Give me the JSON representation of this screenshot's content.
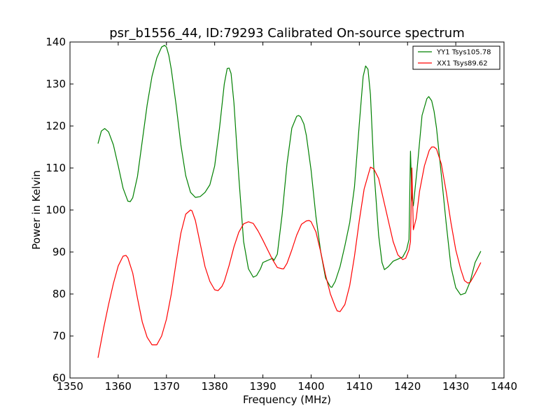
{
  "chart_data": {
    "type": "line",
    "title": "psr_b1556_44, ID:79293 Calibrated On-source spectrum",
    "xlabel": "Frequency (MHz)",
    "ylabel": "Power in Kelvin",
    "xlim": [
      1350,
      1440
    ],
    "ylim": [
      60,
      140
    ],
    "xticks": [
      "1350",
      "1360",
      "1370",
      "1380",
      "1390",
      "1400",
      "1410",
      "1420",
      "1430",
      "1440"
    ],
    "yticks": [
      "60",
      "70",
      "80",
      "90",
      "100",
      "110",
      "120",
      "130",
      "140"
    ],
    "grid": false,
    "legend_position": "top-right",
    "series": [
      {
        "name": "YY1 Tsys105.78",
        "color": "#008000",
        "x": [
          1355.8,
          1356.5,
          1357.2,
          1358,
          1359,
          1360,
          1361,
          1362,
          1362.5,
          1363,
          1364,
          1365,
          1366,
          1367,
          1368,
          1369,
          1369.6,
          1370,
          1370.5,
          1371,
          1372,
          1373,
          1374,
          1375,
          1376,
          1377,
          1378,
          1379,
          1380,
          1381,
          1382,
          1382.6,
          1383,
          1383.4,
          1384,
          1385,
          1386,
          1387,
          1388,
          1388.7,
          1389.5,
          1390,
          1391,
          1392,
          1392.3,
          1393,
          1394,
          1395,
          1396,
          1397,
          1397.4,
          1397.8,
          1398.5,
          1399,
          1400,
          1401,
          1402,
          1403,
          1404,
          1404.3,
          1405,
          1406,
          1407,
          1408,
          1409,
          1410,
          1410.8,
          1411.3,
          1411.8,
          1412.3,
          1413,
          1414,
          1414.7,
          1415.2,
          1416,
          1417,
          1418,
          1419,
          1419.8,
          1420.3,
          1420.6,
          1420.9,
          1421.2,
          1422,
          1423,
          1424,
          1424.4,
          1425,
          1425.5,
          1426,
          1427,
          1428,
          1429,
          1430,
          1431,
          1432,
          1433,
          1434,
          1435.2
        ],
        "y": [
          115.8,
          118.8,
          119.4,
          118.6,
          115.5,
          110.5,
          105.2,
          102.1,
          102,
          102.9,
          108,
          116.5,
          125,
          131.8,
          136.2,
          138.8,
          139.2,
          138.8,
          136.8,
          133.5,
          125,
          115.5,
          108.2,
          104.2,
          103,
          103.2,
          104.2,
          106,
          110.5,
          119.5,
          130,
          133.7,
          133.8,
          132.5,
          125.5,
          108,
          92.5,
          86,
          84,
          84.4,
          86,
          87.5,
          88,
          88.5,
          88,
          89.5,
          99,
          111,
          119.5,
          122.3,
          122.5,
          122.2,
          120.5,
          117.8,
          109.5,
          98.5,
          90,
          83.8,
          81.7,
          81.6,
          83,
          86.5,
          91.5,
          97,
          105.5,
          120.5,
          131.8,
          134.3,
          133.5,
          127.5,
          110,
          94,
          87.5,
          85.8,
          86.5,
          87.8,
          88.3,
          88.8,
          90.5,
          93,
          114,
          103,
          101,
          110,
          122.5,
          126.5,
          127,
          126,
          123.5,
          119.5,
          108.5,
          97,
          86.5,
          81.5,
          79.8,
          80.2,
          83,
          87.5,
          90.2
        ]
      },
      {
        "name": "XX1 Tsys89.62",
        "color": "#ff0000",
        "x": [
          1355.8,
          1357,
          1358,
          1359,
          1360,
          1361,
          1361.6,
          1362,
          1363,
          1364,
          1365,
          1366,
          1367,
          1368,
          1369,
          1370,
          1371,
          1372,
          1373,
          1374,
          1375,
          1375.3,
          1376,
          1377,
          1378,
          1379,
          1380,
          1380.7,
          1381.5,
          1382,
          1383,
          1384,
          1385,
          1386,
          1387,
          1388,
          1389,
          1390,
          1391,
          1392,
          1393,
          1394,
          1394.3,
          1395,
          1396,
          1397,
          1398,
          1399,
          1399.6,
          1400,
          1401,
          1402,
          1403,
          1404,
          1405,
          1405.4,
          1406,
          1407,
          1408,
          1409,
          1410,
          1411,
          1412,
          1412.3,
          1413,
          1414,
          1415,
          1416,
          1417,
          1418,
          1419,
          1419.6,
          1420.3,
          1420.6,
          1420.9,
          1421.2,
          1421.8,
          1422.5,
          1423.5,
          1424.5,
          1425,
          1425.5,
          1426,
          1427,
          1428,
          1429,
          1430,
          1431,
          1431.8,
          1432.5,
          1433,
          1434,
          1435.2
        ],
        "y": [
          64.8,
          72,
          77.5,
          82.5,
          86.7,
          89,
          89.2,
          88.6,
          85,
          79,
          73.3,
          69.7,
          67.9,
          67.9,
          70,
          74,
          80,
          87.5,
          94.5,
          99,
          100,
          99.8,
          97.5,
          92,
          86.5,
          83,
          81,
          80.8,
          81.8,
          83,
          86.8,
          91.2,
          94.7,
          96.7,
          97.2,
          96.8,
          95,
          92.8,
          90.5,
          88.2,
          86.3,
          86,
          86,
          87.3,
          90.5,
          94,
          96.6,
          97.4,
          97.5,
          97.2,
          94.8,
          90,
          84.5,
          80,
          77,
          76,
          75.8,
          77.5,
          82,
          89,
          97.5,
          105,
          109,
          110.2,
          109.8,
          107.5,
          102.5,
          97.5,
          92.5,
          89.3,
          88.2,
          88.5,
          90.5,
          92.5,
          110,
          95.3,
          98,
          104.5,
          110.5,
          114.2,
          115,
          115,
          114.5,
          111,
          104.5,
          97,
          90.5,
          86,
          83.2,
          82.6,
          82.8,
          84.8,
          87.5
        ]
      }
    ]
  }
}
